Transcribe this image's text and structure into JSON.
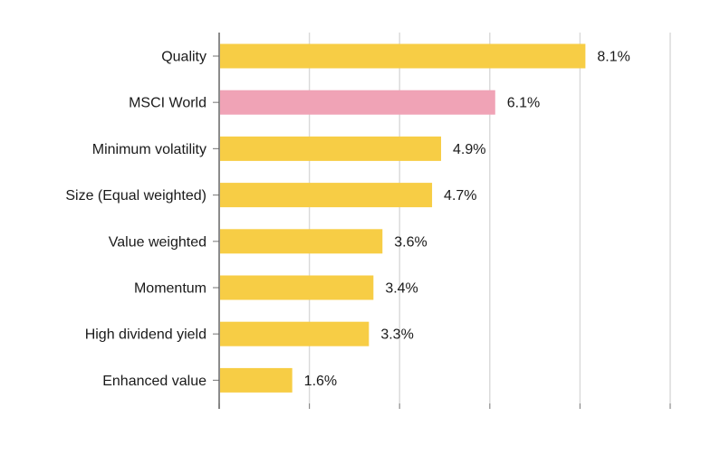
{
  "chart_data": {
    "type": "bar",
    "orientation": "horizontal",
    "title": "",
    "xlabel": "",
    "ylabel": "",
    "xlim": [
      0,
      10
    ],
    "grid_step": 2,
    "categories": [
      "Quality",
      "MSCI World",
      "Minimum volatility",
      "Size (Equal weighted)",
      "Value weighted",
      "Momentum",
      "High dividend yield",
      "Enhanced value"
    ],
    "values": [
      8.1,
      6.1,
      4.9,
      4.7,
      3.6,
      3.4,
      3.3,
      1.6
    ],
    "value_labels": [
      "8.1%",
      "6.1%",
      "4.9%",
      "4.7%",
      "3.6%",
      "3.4%",
      "3.3%",
      "1.6%"
    ],
    "bar_colors": [
      "#f7cd45",
      "#f0a3b6",
      "#f7cd45",
      "#f7cd45",
      "#f7cd45",
      "#f7cd45",
      "#f7cd45",
      "#f7cd45"
    ],
    "colors": {
      "factor": "#f7cd45",
      "benchmark": "#f0a3b6"
    }
  }
}
